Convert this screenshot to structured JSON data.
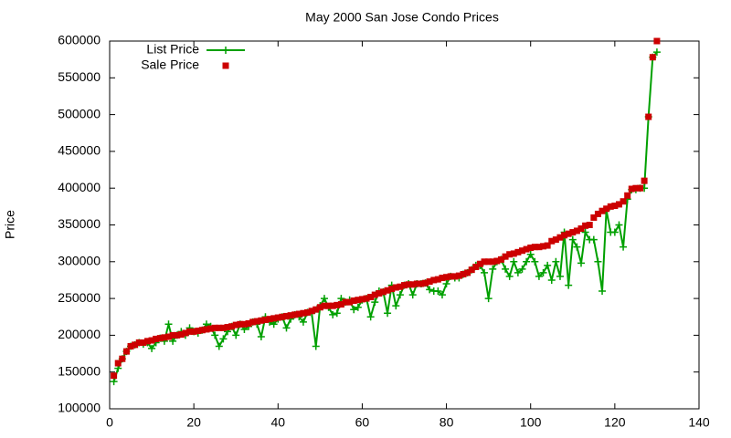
{
  "chart_data": {
    "type": "scatter",
    "title": "May 2000 San Jose Condo Prices",
    "y_label": "Price",
    "legend": "top-left",
    "xlim": [
      0,
      140
    ],
    "xticks": [
      0,
      20,
      40,
      60,
      80,
      100,
      120,
      140
    ],
    "ylim": [
      100000,
      600000
    ],
    "yticks": [
      100000,
      150000,
      200000,
      250000,
      300000,
      350000,
      400000,
      450000,
      500000,
      550000,
      600000
    ],
    "x": [
      1,
      2,
      3,
      4,
      5,
      6,
      7,
      8,
      9,
      10,
      11,
      12,
      13,
      14,
      15,
      16,
      17,
      18,
      19,
      20,
      21,
      22,
      23,
      24,
      25,
      26,
      27,
      28,
      29,
      30,
      31,
      32,
      33,
      34,
      35,
      36,
      37,
      38,
      39,
      40,
      41,
      42,
      43,
      44,
      45,
      46,
      47,
      48,
      49,
      50,
      51,
      52,
      53,
      54,
      55,
      56,
      57,
      58,
      59,
      60,
      61,
      62,
      63,
      64,
      65,
      66,
      67,
      68,
      69,
      70,
      71,
      72,
      73,
      74,
      75,
      76,
      77,
      78,
      79,
      80,
      81,
      82,
      83,
      84,
      85,
      86,
      87,
      88,
      89,
      90,
      91,
      92,
      93,
      94,
      95,
      96,
      97,
      98,
      99,
      100,
      101,
      102,
      103,
      104,
      105,
      106,
      107,
      108,
      109,
      110,
      111,
      112,
      113,
      114,
      115,
      116,
      117,
      118,
      119,
      120,
      121,
      122,
      123,
      124,
      125,
      126,
      127,
      128,
      129,
      130
    ],
    "series": [
      {
        "name": "List Price",
        "color": "#00a000",
        "style": "linespoints",
        "values": [
          137000,
          155000,
          168000,
          178000,
          185000,
          187000,
          190000,
          188000,
          190000,
          182000,
          190000,
          196000,
          192000,
          215000,
          192000,
          200000,
          205000,
          200000,
          210000,
          205000,
          203000,
          207000,
          215000,
          212000,
          200000,
          185000,
          195000,
          205000,
          212000,
          200000,
          215000,
          208000,
          212000,
          218000,
          215000,
          198000,
          225000,
          218000,
          215000,
          222000,
          225000,
          210000,
          222000,
          228000,
          225000,
          218000,
          231000,
          230000,
          185000,
          240000,
          250000,
          238000,
          228000,
          230000,
          250000,
          245000,
          248000,
          235000,
          238000,
          248000,
          250000,
          225000,
          245000,
          260000,
          259000,
          230000,
          268000,
          240000,
          255000,
          268000,
          270000,
          255000,
          270000,
          270000,
          271000,
          262000,
          260000,
          260000,
          255000,
          270000,
          280000,
          278000,
          278000,
          283000,
          285000,
          289000,
          295000,
          295000,
          285000,
          250000,
          290000,
          300000,
          303000,
          290000,
          280000,
          300000,
          285000,
          290000,
          300000,
          310000,
          300000,
          280000,
          285000,
          295000,
          275000,
          300000,
          280000,
          340000,
          268000,
          330000,
          320000,
          298000,
          340000,
          330000,
          330000,
          300000,
          260000,
          370000,
          340000,
          340000,
          350000,
          320000,
          385000,
          398000,
          398000,
          400000,
          400000,
          497000,
          578000,
          585000
        ]
      },
      {
        "name": "Sale Price",
        "color": "#cc0000",
        "style": "points",
        "values": [
          145000,
          162000,
          168000,
          178000,
          185000,
          187000,
          190000,
          190000,
          192000,
          193000,
          195000,
          196000,
          197000,
          198000,
          200000,
          200000,
          201000,
          203000,
          205000,
          205000,
          206000,
          207000,
          208000,
          209000,
          210000,
          210000,
          210000,
          211000,
          212000,
          214000,
          215000,
          215000,
          216000,
          218000,
          219000,
          220000,
          221000,
          222000,
          223000,
          224000,
          225000,
          226000,
          227000,
          228000,
          229000,
          230000,
          231000,
          233000,
          235000,
          238000,
          240000,
          240000,
          240000,
          241000,
          242000,
          245000,
          245000,
          247000,
          248000,
          249000,
          250000,
          252000,
          255000,
          257000,
          259000,
          261000,
          263000,
          265000,
          266000,
          268000,
          269000,
          269000,
          270000,
          270000,
          271000,
          273000,
          275000,
          276000,
          278000,
          279000,
          280000,
          280000,
          281000,
          283000,
          285000,
          289000,
          293000,
          297000,
          300000,
          300000,
          300000,
          301000,
          303000,
          307000,
          310000,
          311000,
          313000,
          315000,
          317000,
          319000,
          320000,
          320000,
          321000,
          322000,
          328000,
          330000,
          333000,
          336000,
          338000,
          340000,
          342000,
          345000,
          349000,
          350000,
          360000,
          365000,
          369000,
          372000,
          375000,
          376000,
          378000,
          382000,
          390000,
          399000,
          400000,
          400000,
          410000,
          497000,
          578000,
          600000
        ]
      }
    ]
  }
}
